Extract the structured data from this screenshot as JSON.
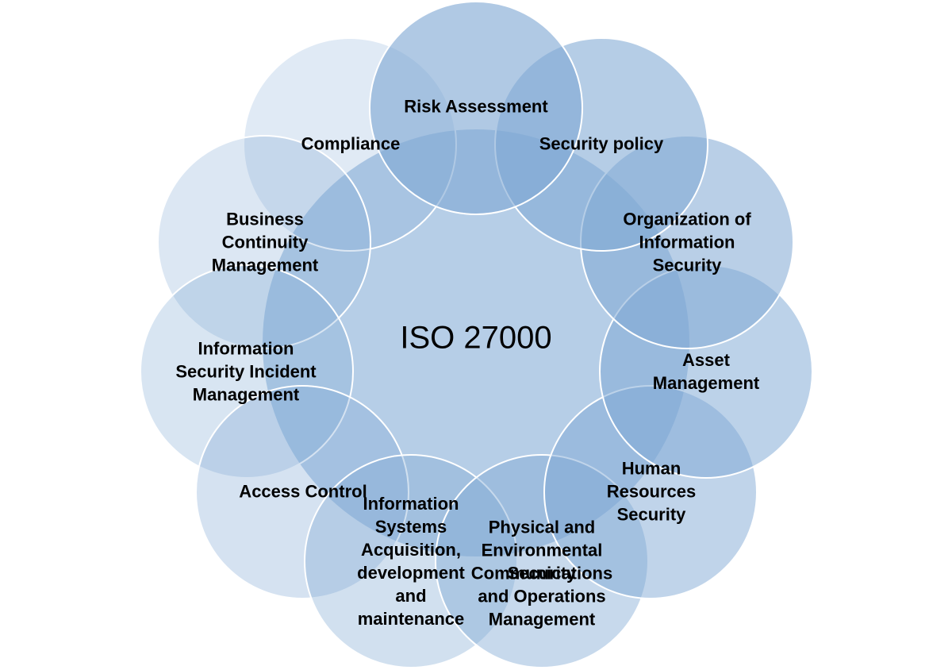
{
  "center": {
    "label": "ISO 27000",
    "color": "#7aa6d3"
  },
  "colors": {
    "petal_fill": "#7fa8d4",
    "petal_stroke": "#ffffff"
  },
  "petals": [
    {
      "id": "risk-assessment",
      "label": "Risk Assessment",
      "alpha": 0.62
    },
    {
      "id": "security-policy",
      "label": "Security policy",
      "alpha": 0.58
    },
    {
      "id": "organization-of-information-security",
      "label": "Organization of\nInformation\nSecurity",
      "alpha": 0.55
    },
    {
      "id": "asset-management",
      "label": "Asset\nManagement",
      "alpha": 0.52
    },
    {
      "id": "human-resources-security",
      "label": "Human\nResources\nSecurity",
      "alpha": 0.49
    },
    {
      "id": "physical-environmental-security",
      "label": "Physical and\nEnvironmental\nSecurity",
      "alpha": 0.44
    },
    {
      "id": "communications-operations-management",
      "label": "Communications\nand Operations\nManagement",
      "alpha": 0.4
    },
    {
      "id": "information-systems-acquisition",
      "label": "Information\nSystems\nAcquisition,\ndevelopment\nand\nmaintenance",
      "alpha": 0.36
    },
    {
      "id": "access-control",
      "label": "Access Control",
      "alpha": 0.33
    },
    {
      "id": "information-security-incident-management",
      "label": "Information\nSecurity Incident\nManagement",
      "alpha": 0.3
    },
    {
      "id": "business-continuity-management",
      "label": "Business\nContinuity\nManagement",
      "alpha": 0.27
    },
    {
      "id": "compliance",
      "label": "Compliance",
      "alpha": 0.24
    }
  ]
}
